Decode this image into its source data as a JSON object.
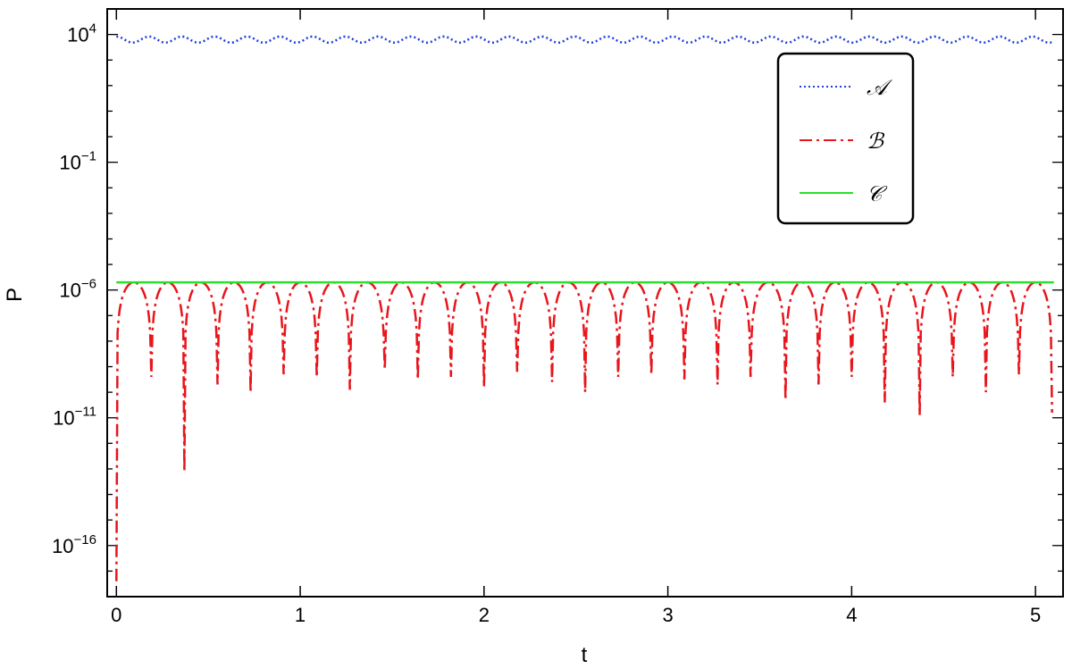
{
  "chart_data": {
    "type": "line",
    "title": "",
    "xlabel": "t",
    "ylabel": "P",
    "xlim": [
      -0.05,
      5.15
    ],
    "ylim_log10": [
      -18,
      5
    ],
    "y_scale": "log",
    "x_ticks": [
      {
        "value": 0,
        "label": "0"
      },
      {
        "value": 1,
        "label": "1"
      },
      {
        "value": 2,
        "label": "2"
      },
      {
        "value": 3,
        "label": "3"
      },
      {
        "value": 4,
        "label": "4"
      },
      {
        "value": 5,
        "label": "5"
      }
    ],
    "y_ticks": [
      {
        "exp": 4,
        "base": "10",
        "sup": "4"
      },
      {
        "exp": -1,
        "base": "10",
        "sup": "−1"
      },
      {
        "exp": -6,
        "base": "10",
        "sup": "−6"
      },
      {
        "exp": -11,
        "base": "10",
        "sup": "−11"
      },
      {
        "exp": -16,
        "base": "10",
        "sup": "−16"
      }
    ],
    "grid": false,
    "legend_position": "top-right",
    "series": [
      {
        "name": "𝒜",
        "style": "dotted",
        "color": "#1f3fdc",
        "mean_log10": 3.8,
        "oscillation_log10": 0.12,
        "oscillation_period": 0.178
      },
      {
        "name": "ℬ",
        "style": "dash-dot",
        "color": "#e8151b",
        "dip_times": [
          0.0,
          0.19,
          0.37,
          0.55,
          0.73,
          0.91,
          1.09,
          1.27,
          1.46,
          1.64,
          1.82,
          2.0,
          2.18,
          2.37,
          2.55,
          2.73,
          2.91,
          3.09,
          3.27,
          3.45,
          3.64,
          3.82,
          4.0,
          4.18,
          4.37,
          4.55,
          4.73,
          4.91,
          5.09
        ],
        "dip_values_log10": [
          -17.4,
          -9.4,
          -13.1,
          -9.7,
          -10.0,
          -9.3,
          -9.4,
          -9.9,
          -9.1,
          -9.5,
          -9.4,
          -9.8,
          -9.2,
          -9.6,
          -10.0,
          -9.4,
          -9.3,
          -9.5,
          -9.7,
          -9.4,
          -10.3,
          -9.7,
          -9.4,
          -10.4,
          -10.9,
          -9.4,
          -10.0,
          -9.3,
          -10.8
        ],
        "peak_log10": -5.7
      },
      {
        "name": "𝒞",
        "style": "solid",
        "color": "#2be02b",
        "value_log10": -5.7
      }
    ]
  }
}
